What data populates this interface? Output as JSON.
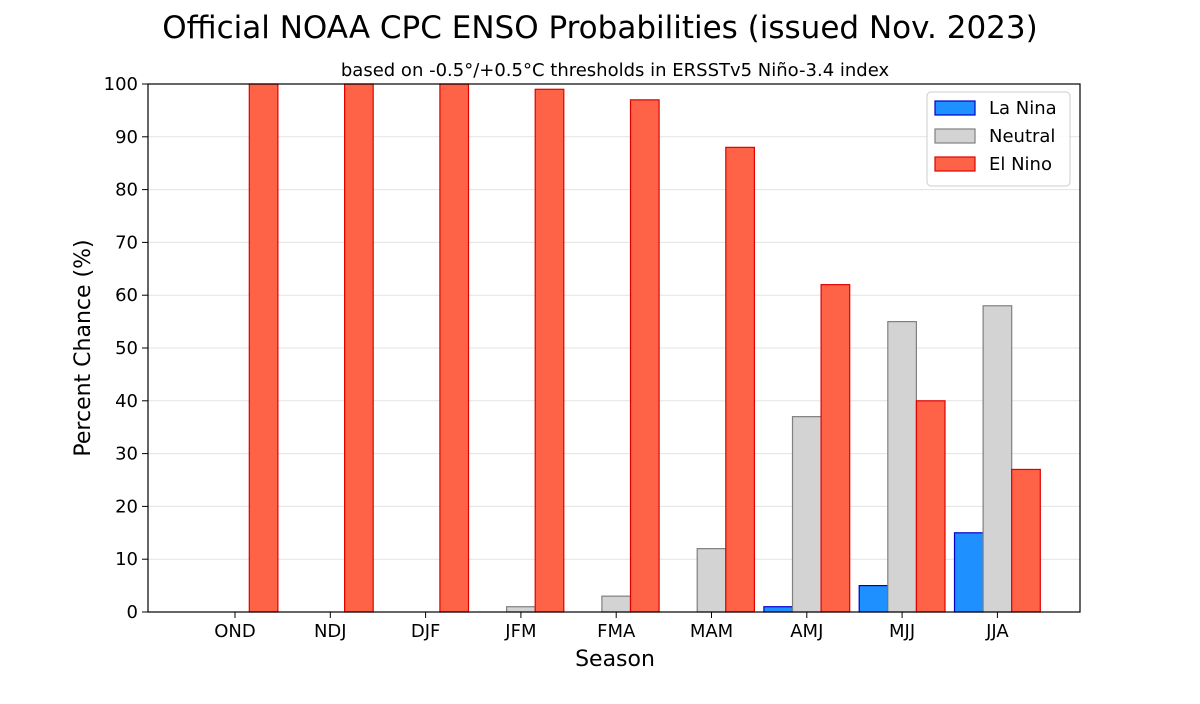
{
  "chart_data": {
    "type": "bar",
    "title": "Official NOAA CPC ENSO Probabilities (issued Nov. 2023)",
    "subtitle": "based on -0.5°/+0.5°C thresholds in ERSSTv5 Niño-3.4 index",
    "xlabel": "Season",
    "ylabel": "Percent Chance (%)",
    "ylim": [
      0,
      100
    ],
    "yticks": [
      0,
      10,
      20,
      30,
      40,
      50,
      60,
      70,
      80,
      90,
      100
    ],
    "grid": "y",
    "legend_position": "top-right",
    "categories": [
      "OND",
      "NDJ",
      "DJF",
      "JFM",
      "FMA",
      "MAM",
      "AMJ",
      "MJJ",
      "JJA"
    ],
    "series": [
      {
        "name": "La Nina",
        "color": "#1e90ff",
        "edge": "#0000cc",
        "values": [
          0,
          0,
          0,
          0,
          0,
          0,
          1,
          5,
          15
        ]
      },
      {
        "name": "Neutral",
        "color": "#d3d3d3",
        "edge": "#808080",
        "values": [
          0,
          0,
          0,
          1,
          3,
          12,
          37,
          55,
          58
        ]
      },
      {
        "name": "El Nino",
        "color": "#ff6347",
        "edge": "#e00000",
        "values": [
          100,
          100,
          100,
          99,
          97,
          88,
          62,
          40,
          27
        ]
      }
    ]
  }
}
